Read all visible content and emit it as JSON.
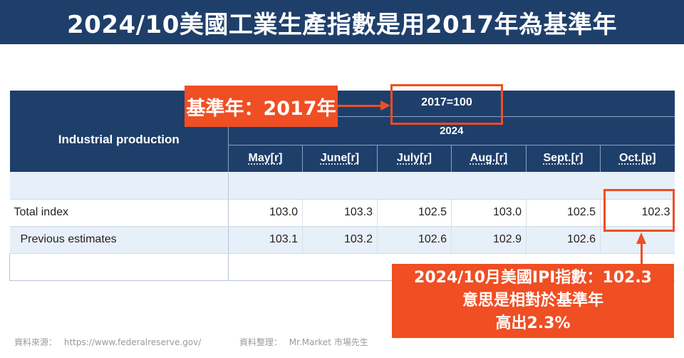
{
  "banner": {
    "title": "2024/10美國工業生產指數是用2017年為基準年"
  },
  "table": {
    "base_label": "2017=100",
    "year": "2024",
    "row_header": "Industrial production",
    "months": [
      "May[r]",
      "June[r]",
      "July[r]",
      "Aug.[r]",
      "Sept.[r]",
      "Oct.[p]"
    ],
    "rows": [
      {
        "label": "Total index",
        "values": [
          "103.0",
          "103.3",
          "102.5",
          "103.0",
          "102.5",
          "102.3"
        ]
      },
      {
        "label": "Previous estimates",
        "values": [
          "103.1",
          "103.2",
          "102.6",
          "102.9",
          "102.6",
          ""
        ]
      }
    ]
  },
  "annotations": {
    "base_year": "基準年：2017年",
    "ipi_line1": "2024/10月美國IPI指數：102.3",
    "ipi_line2": "意思是相對於基準年",
    "ipi_line3": "高出2.3%"
  },
  "footer": {
    "source_label": "資料來源：",
    "source_url": "https://www.federalreserve.gov/",
    "compiled_label": "資料整理：",
    "compiled_by": "Mr.Market 市場先生"
  },
  "colors": {
    "banner_bg": "#1f3f6b",
    "accent": "#f04e23",
    "row_alt": "#e7f0f9"
  }
}
